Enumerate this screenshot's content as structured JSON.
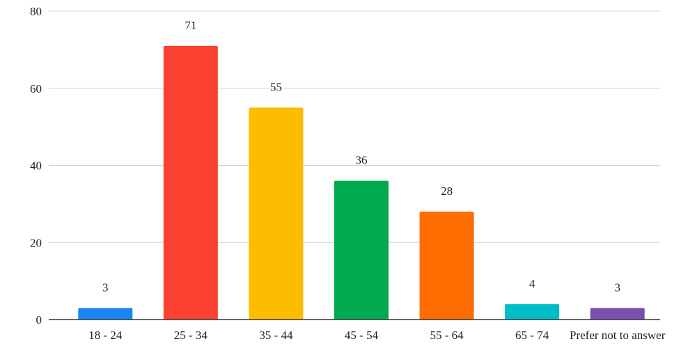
{
  "chart_data": {
    "type": "bar",
    "title": "",
    "xlabel": "",
    "ylabel": "",
    "categories": [
      "18 - 24",
      "25 - 34",
      "35 - 44",
      "45 - 54",
      "55 - 64",
      "65 - 74",
      "Prefer not to answer"
    ],
    "values": [
      3,
      71,
      55,
      36,
      28,
      4,
      3
    ],
    "colors": [
      "#1a87f2",
      "#fb4230",
      "#fdbc00",
      "#00a94e",
      "#ff6c00",
      "#00bdc7",
      "#7a4fb0"
    ],
    "ylim": [
      0,
      80
    ],
    "yticks": [
      "0",
      "20",
      "40",
      "60",
      "80"
    ],
    "grid": true,
    "legend": "none",
    "data_labels": true
  }
}
